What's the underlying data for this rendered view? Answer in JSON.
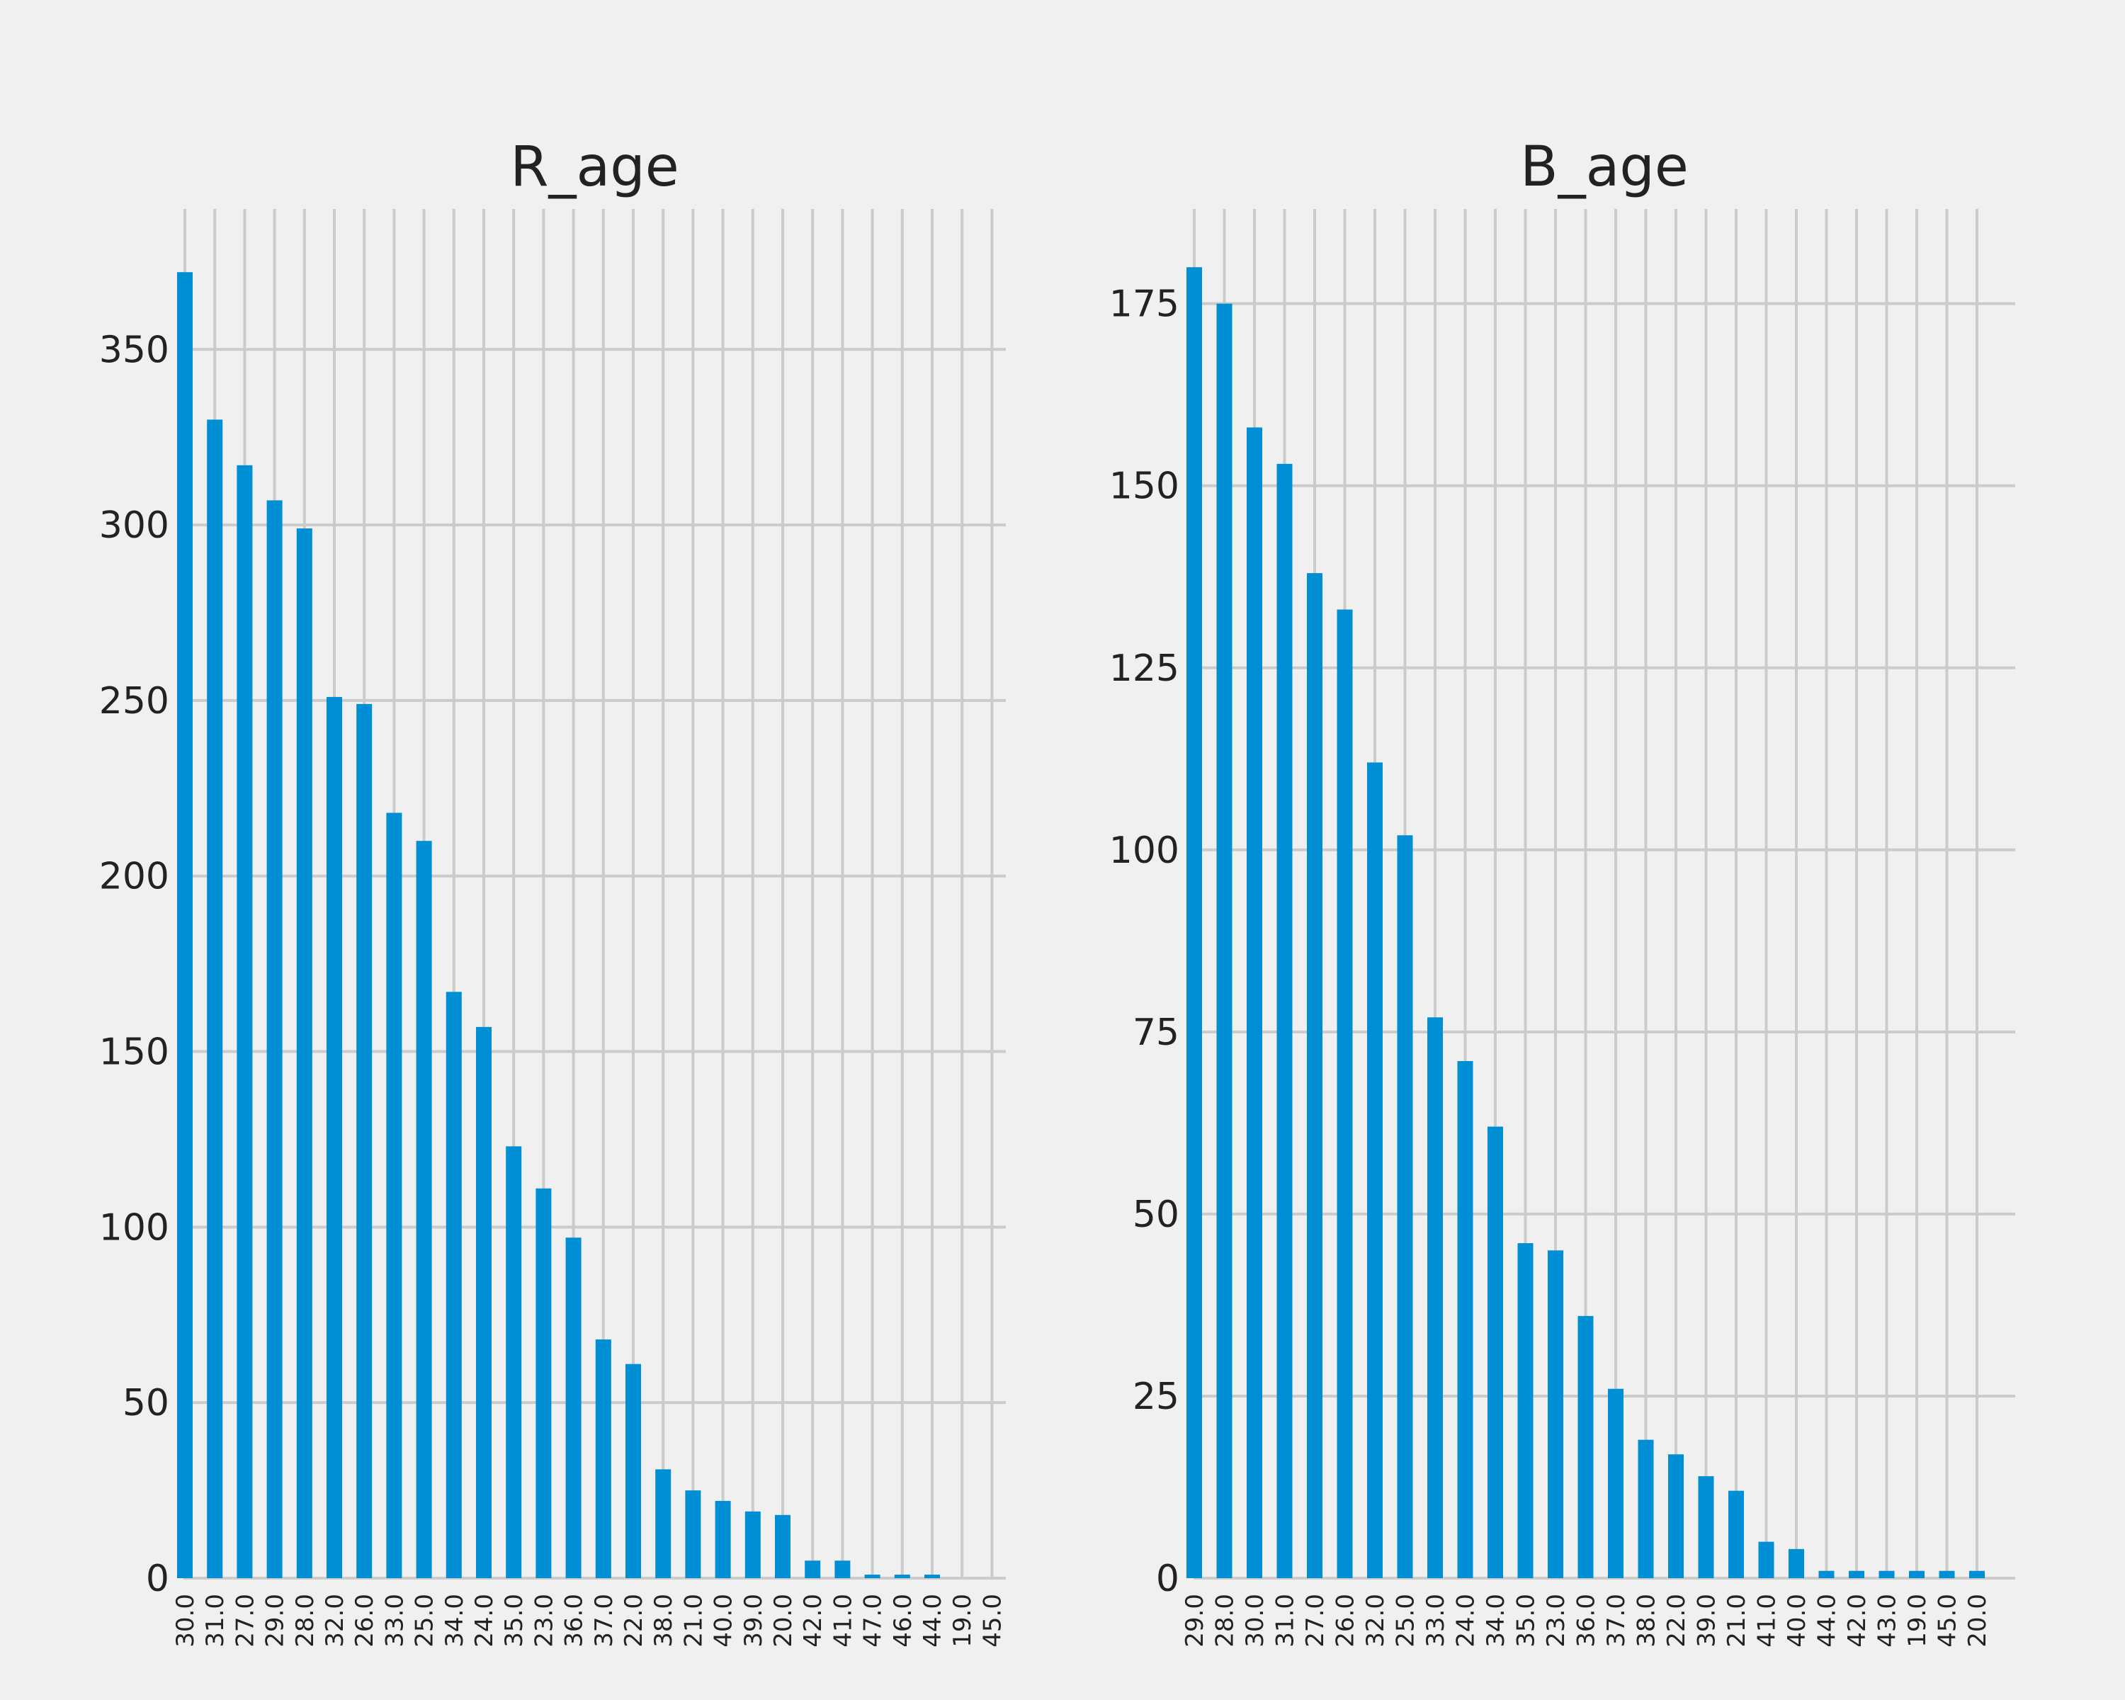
{
  "colors": {
    "background": "#f0f0f0",
    "bar": "#008fd5",
    "grid": "#cbcbcb",
    "text": "#222222"
  },
  "chart_data": [
    {
      "type": "bar",
      "title": "R_age",
      "xlabel": "",
      "ylabel": "",
      "ylim": [
        0,
        390
      ],
      "yticks": [
        0,
        50,
        100,
        150,
        200,
        250,
        300,
        350
      ],
      "grid": true,
      "legend": "none",
      "categories": [
        "30.0",
        "31.0",
        "27.0",
        "29.0",
        "28.0",
        "32.0",
        "26.0",
        "33.0",
        "25.0",
        "34.0",
        "24.0",
        "35.0",
        "23.0",
        "36.0",
        "37.0",
        "22.0",
        "38.0",
        "21.0",
        "40.0",
        "39.0",
        "20.0",
        "42.0",
        "41.0",
        "47.0",
        "46.0",
        "44.0",
        "19.0",
        "45.0"
      ],
      "values": [
        372,
        330,
        317,
        307,
        299,
        251,
        249,
        218,
        210,
        167,
        157,
        123,
        111,
        97,
        68,
        61,
        31,
        25,
        22,
        19,
        18,
        5,
        5,
        1,
        1,
        1,
        0,
        0
      ]
    },
    {
      "type": "bar",
      "title": "B_age",
      "xlabel": "",
      "ylabel": "",
      "ylim": [
        0,
        188
      ],
      "yticks": [
        0,
        25,
        50,
        75,
        100,
        125,
        150,
        175
      ],
      "grid": true,
      "legend": "none",
      "categories": [
        "29.0",
        "28.0",
        "30.0",
        "31.0",
        "27.0",
        "26.0",
        "32.0",
        "25.0",
        "33.0",
        "24.0",
        "34.0",
        "35.0",
        "23.0",
        "36.0",
        "37.0",
        "38.0",
        "22.0",
        "39.0",
        "21.0",
        "41.0",
        "40.0",
        "44.0",
        "42.0",
        "43.0",
        "19.0",
        "45.0",
        "20.0"
      ],
      "values": [
        180,
        175,
        158,
        153,
        138,
        133,
        112,
        102,
        77,
        71,
        62,
        46,
        45,
        36,
        26,
        19,
        17,
        14,
        12,
        5,
        4,
        1,
        1,
        1,
        1,
        1,
        1
      ]
    }
  ]
}
